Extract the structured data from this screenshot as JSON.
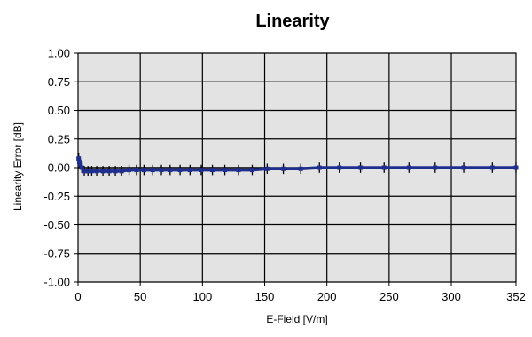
{
  "chart_data": {
    "type": "line",
    "title": "Linearity",
    "xlabel": "E-Field [V/m]",
    "ylabel": "Linearity Error [dB]",
    "xlim": [
      0,
      352
    ],
    "ylim": [
      -1.0,
      1.0
    ],
    "x_ticks": [
      0,
      50,
      100,
      150,
      200,
      250,
      300,
      352
    ],
    "x_tick_labels": [
      "0",
      "50",
      "100",
      "150",
      "200",
      "250",
      "300",
      "352"
    ],
    "y_ticks": [
      1.0,
      0.75,
      0.5,
      0.25,
      0.0,
      -0.25,
      -0.5,
      -0.75,
      -1.0
    ],
    "y_tick_labels": [
      "1.00",
      "0.75",
      "0.50",
      "0.25",
      "0.00",
      "-0.25",
      "-0.50",
      "-0.75",
      "-1.00"
    ],
    "grid": true,
    "colors": {
      "plot_bg": "#e3e3e3",
      "grid": "#000000",
      "series": "#1f2f8f",
      "error_bar": "#000000"
    },
    "series": [
      {
        "x": [
          0.5,
          1,
          2,
          3,
          5,
          8,
          11,
          15,
          20,
          25,
          30,
          35,
          41,
          47,
          53,
          60,
          67,
          74,
          82,
          90,
          99,
          108,
          118,
          129,
          140,
          152,
          165,
          179,
          194,
          210,
          227,
          246,
          266,
          287,
          310,
          333,
          352
        ],
        "y": [
          0.08,
          0.05,
          0.03,
          0.0,
          -0.03,
          -0.03,
          -0.03,
          -0.03,
          -0.03,
          -0.03,
          -0.03,
          -0.03,
          -0.02,
          -0.02,
          -0.02,
          -0.02,
          -0.02,
          -0.02,
          -0.02,
          -0.02,
          -0.02,
          -0.02,
          -0.02,
          -0.02,
          -0.02,
          -0.01,
          -0.01,
          -0.01,
          0.0,
          0.0,
          0.0,
          0.0,
          0.0,
          0.0,
          0.0,
          0.0,
          0.0
        ],
        "error": 0.045
      }
    ]
  }
}
